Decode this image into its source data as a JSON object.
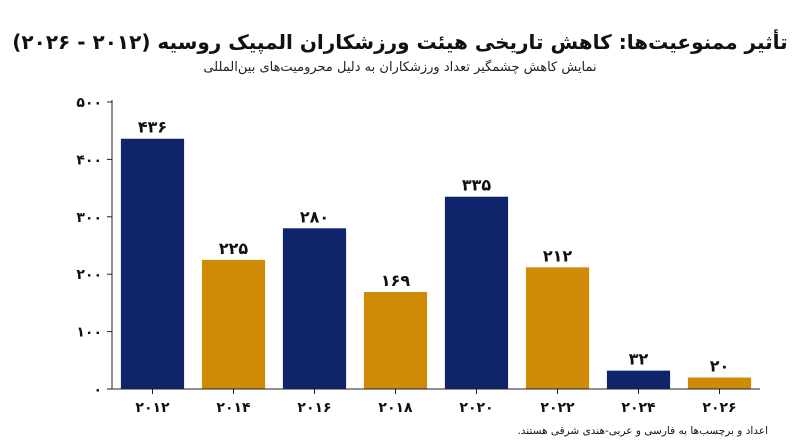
{
  "chart_data": {
    "type": "bar",
    "title": "تأثیر ممنوعیت‌ها: کاهش تاریخی هیئت ورزشکاران المپیک روسیه (۲۰۱۲ - ۲۰۲۶)",
    "subtitle": "نمایش کاهش چشمگیر تعداد ورزشکاران به دلیل محرومیت‌های بین‌المللی",
    "footnote": "اعداد و برچسب‌ها به فارسی و عربی-هندی شرقی هستند.",
    "xlabel": "",
    "ylabel": "",
    "ylim": [
      0,
      500
    ],
    "yticks": [
      0,
      100,
      200,
      300,
      400,
      500
    ],
    "ytick_labels": [
      "۰",
      "۱۰۰",
      "۲۰۰",
      "۳۰۰",
      "۴۰۰",
      "۵۰۰"
    ],
    "categories": [
      "۲۰۱۲",
      "۲۰۱۴",
      "۲۰۱۶",
      "۲۰۱۸",
      "۲۰۲۰",
      "۲۰۲۲",
      "۲۰۲۴",
      "۲۰۲۶"
    ],
    "values": [
      436,
      225,
      280,
      169,
      335,
      212,
      32,
      20
    ],
    "value_labels": [
      "۴۳۶",
      "۲۲۵",
      "۲۸۰",
      "۱۶۹",
      "۳۳۵",
      "۲۱۲",
      "۳۲",
      "۲۰"
    ],
    "colors": [
      "#10246b",
      "#cf8a06",
      "#10246b",
      "#cf8a06",
      "#10246b",
      "#cf8a06",
      "#10246b",
      "#cf8a06"
    ],
    "grid": false,
    "legend": "none"
  }
}
